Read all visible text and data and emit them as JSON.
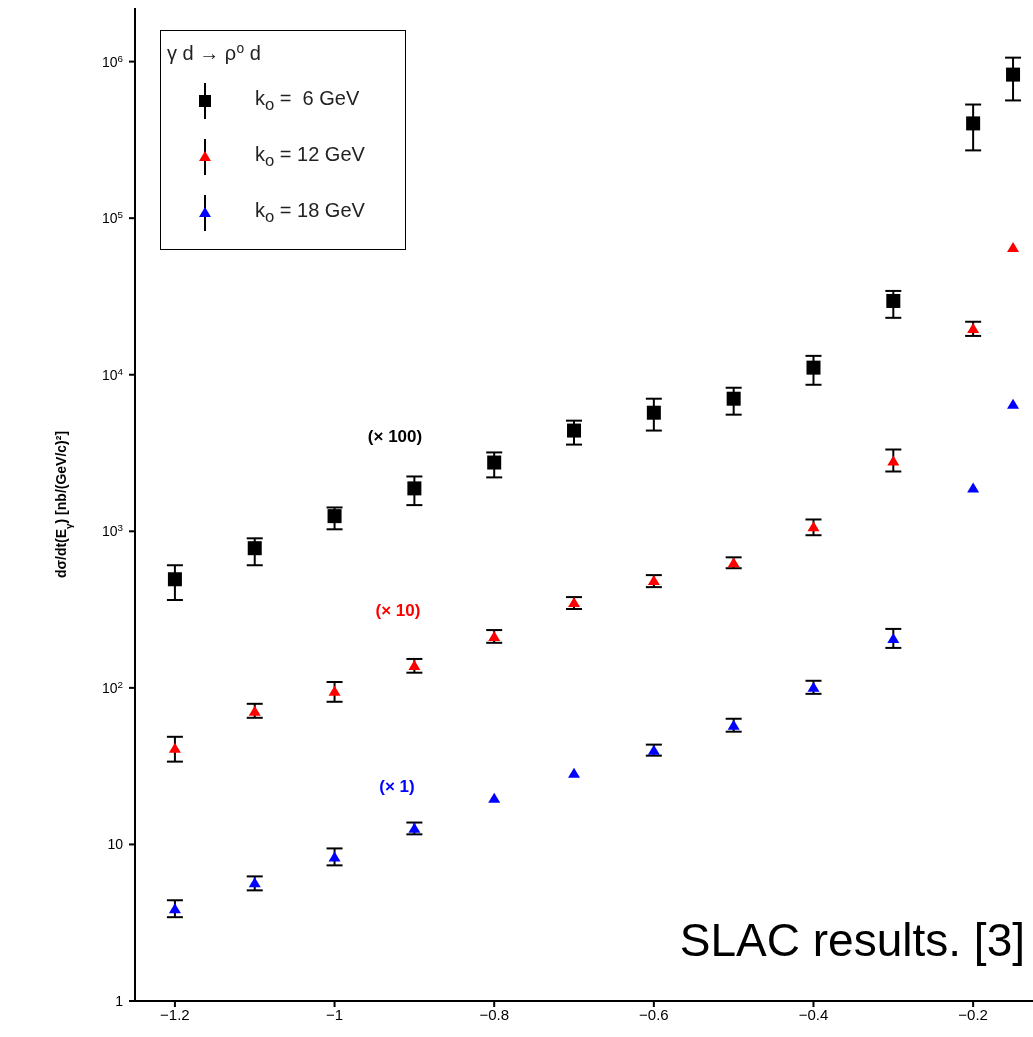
{
  "chart_data": {
    "type": "scatter",
    "ylabel": "dσ/dt(E$_{γ}$) [nb/(GeV/c)²]",
    "legend_title": "γ d → ρ⁰ d",
    "x": [
      -1.2,
      -1.1,
      -1.0,
      -0.9,
      -0.8,
      -0.7,
      -0.6,
      -0.5,
      -0.4,
      -0.3,
      -0.2,
      -0.15
    ],
    "series": [
      {
        "name": "k$_{o}$ =  6 GeV",
        "color": "#000000",
        "marker": "square",
        "values": [
          494,
          780,
          1250,
          1880,
          2750,
          4400,
          5720,
          7030,
          11100,
          29600,
          403000,
          826000
        ],
        "errors": [
          [
            364,
            607
          ],
          [
            607,
            902
          ],
          [
            1030,
            1420
          ],
          [
            1470,
            2240
          ],
          [
            2210,
            3190
          ],
          [
            3580,
            5090
          ],
          [
            4400,
            7030
          ],
          [
            5560,
            8260
          ],
          [
            8630,
            13200
          ],
          [
            23100,
            34300
          ],
          [
            271000,
            532000
          ],
          [
            565000,
            1060000
          ]
        ]
      },
      {
        "name": "k$_{o}$ = 12 GeV",
        "color": "#ff0000",
        "marker": "triangle",
        "values": [
          40.9,
          70.3,
          94.3,
          138,
          211,
          348,
          481,
          625,
          1060,
          2790,
          19600,
          64400
        ],
        "errors": [
          [
            33.8,
            48.7
          ],
          [
            64.4,
            79.1
          ],
          [
            81.5,
            109
          ],
          [
            125,
            153
          ],
          [
            194,
            234
          ],
          [
            319,
            380
          ],
          [
            440,
            525
          ],
          [
            581,
            682
          ],
          [
            944,
            1190
          ],
          [
            2410,
            3330
          ],
          [
            17700,
            21800
          ],
          null
        ]
      },
      {
        "name": "k$_{o}$ = 18 GeV",
        "color": "#0000ff",
        "marker": "triangle",
        "values": [
          3.86,
          5.65,
          8.26,
          12.6,
          19.6,
          28.3,
          39.7,
          57.3,
          100,
          205,
          1880,
          6440
        ],
        "errors": [
          [
            3.43,
            4.4
          ],
          [
            5.09,
            6.25
          ],
          [
            7.35,
            9.43
          ],
          [
            11.6,
            13.8
          ],
          null,
          null,
          [
            36.9,
            43.4
          ],
          [
            52.5,
            63.5
          ],
          [
            91.6,
            111
          ],
          [
            180,
            238
          ],
          null,
          null
        ]
      }
    ],
    "annotations": [
      "(× 100)",
      "(× 10)",
      "(× 1)",
      "SLAC results. [3]"
    ],
    "log": "y",
    "xlim": [
      -1.25,
      -0.125
    ],
    "xticks": [
      -1.2,
      -1,
      -0.8,
      -0.6,
      -0.4,
      -0.2
    ],
    "ylim": [
      1,
      2200000
    ],
    "yticks": [
      1,
      10,
      {
        "value": 100,
        "label": "10$^{2}$"
      },
      {
        "value": 1000,
        "label": "10$^{3}$"
      },
      {
        "value": 10000,
        "label": "10$^{4}$"
      },
      {
        "value": 100000,
        "label": "10$^{5}$"
      },
      {
        "value": 1000000,
        "label": "10$^{6}$"
      }
    ],
    "legend": "top left"
  }
}
